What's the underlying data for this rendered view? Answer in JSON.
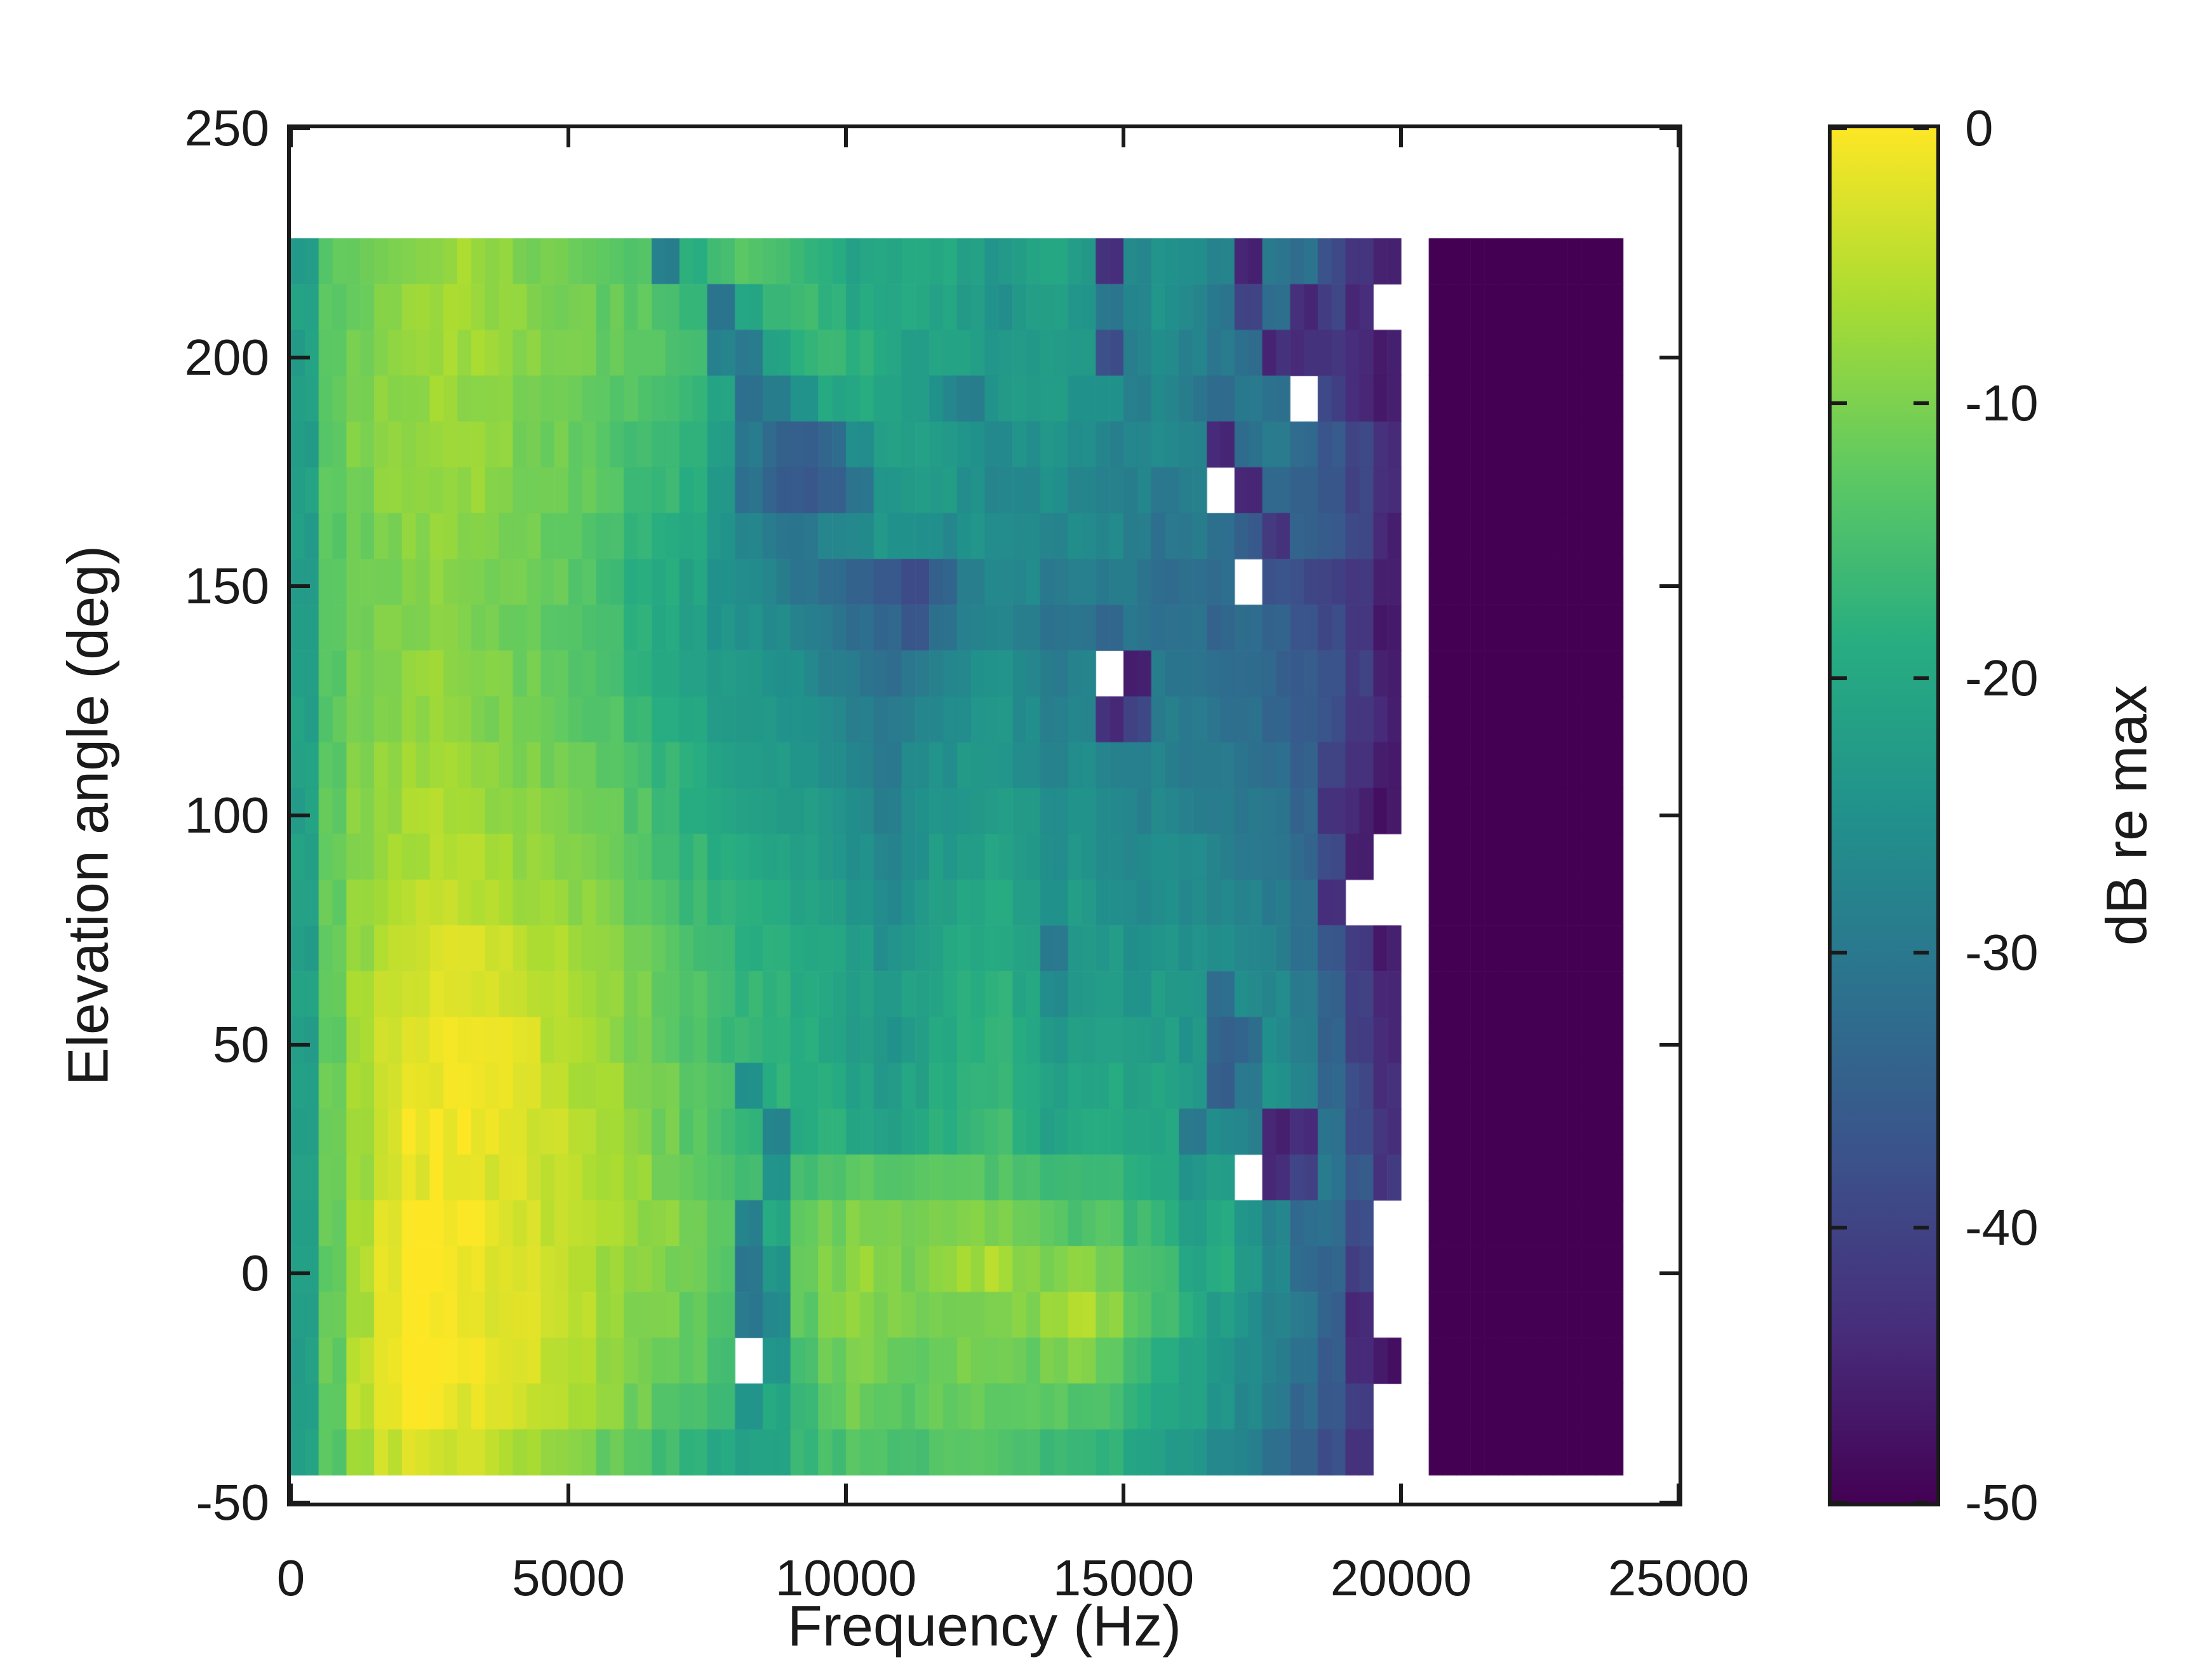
{
  "axes": {
    "xlabel": "Frequency (Hz)",
    "ylabel": "Elevation angle (deg)",
    "xlim": [
      0,
      25000
    ],
    "ylim": [
      -50,
      250
    ],
    "xticks": [
      0,
      5000,
      10000,
      15000,
      20000,
      25000
    ],
    "yticks": [
      -50,
      0,
      50,
      100,
      150,
      200,
      250
    ],
    "spine_color": "#1a1a1a",
    "text_color": "#1a1a1a",
    "background": "#ffffff"
  },
  "colorbar": {
    "label": "dB re max",
    "ticks": [
      0,
      -10,
      -20,
      -30,
      -40,
      -50
    ],
    "min": -50,
    "max": 0
  },
  "chart_data": {
    "type": "heatmap",
    "title": "",
    "xlabel": "Frequency (Hz)",
    "ylabel": "Elevation angle (deg)",
    "value_label": "dB re max",
    "value_range": [
      -50,
      0
    ],
    "xlim": [
      0,
      25000
    ],
    "ylim": [
      -50,
      250
    ],
    "x_bin_edges_hz": {
      "start": 0,
      "step": 500,
      "cols": 48
    },
    "y_bin_top_edges_deg": {
      "top": 226,
      "step": -10,
      "rows": 27
    },
    "nan_rendered_as": "white",
    "colormap": {
      "name": "viridis",
      "stops": [
        "#440154",
        "#472d7b",
        "#3b528b",
        "#2c728e",
        "#21918c",
        "#27ad81",
        "#5ec962",
        "#aadc32",
        "#fde725"
      ]
    },
    "values_db_re_max": [
      [
        -22,
        -13,
        -11,
        -10,
        -9,
        -8,
        -7,
        -8,
        -10,
        -11,
        -12,
        -13,
        -14,
        -28,
        -18,
        -16,
        -14,
        -15,
        -17,
        -19,
        -21,
        -20,
        -19,
        -20,
        -22,
        -24,
        -22,
        -21,
        -23,
        -44,
        -26,
        -24,
        -26,
        -28,
        -45,
        -30,
        -32,
        -38,
        -42,
        -46,
        null,
        -50,
        -50,
        -50,
        -50,
        -50,
        -50,
        -50
      ],
      [
        -22,
        -13,
        -11,
        -9,
        -8,
        -7,
        -7,
        -8,
        -9,
        -10,
        -11,
        -12,
        -13,
        -15,
        -17,
        -30,
        -20,
        -17,
        -16,
        -18,
        -20,
        -21,
        -20,
        -21,
        -23,
        -25,
        -23,
        -22,
        -24,
        -30,
        -27,
        -25,
        -27,
        -30,
        -40,
        -32,
        -44,
        -40,
        -44,
        null,
        null,
        -50,
        -50,
        -50,
        -50,
        -50,
        -50,
        -50
      ],
      [
        -22,
        -13,
        -10,
        -9,
        -8,
        -7,
        -7,
        -8,
        -9,
        -10,
        -11,
        -12,
        -13,
        -14,
        -16,
        -28,
        -30,
        -22,
        -18,
        -17,
        -18,
        -20,
        -22,
        -21,
        -22,
        -24,
        -23,
        -22,
        -24,
        -38,
        -28,
        -26,
        -28,
        -30,
        -32,
        -44,
        -44,
        -42,
        -44,
        -46,
        null,
        -50,
        -50,
        -50,
        -50,
        -50,
        -50,
        -50
      ],
      [
        -22,
        -13,
        -10,
        -9,
        -8,
        -7,
        -8,
        -9,
        -10,
        -11,
        -12,
        -13,
        -14,
        -15,
        -17,
        -20,
        -32,
        -30,
        -24,
        -20,
        -19,
        -20,
        -22,
        -26,
        -28,
        -24,
        -22,
        -23,
        -25,
        -26,
        -28,
        -27,
        -30,
        -32,
        -30,
        -32,
        null,
        -40,
        -44,
        -46,
        null,
        -50,
        -50,
        -50,
        -50,
        -50,
        -50,
        -50
      ],
      [
        -22,
        -13,
        -10,
        -9,
        -8,
        -7,
        -8,
        -9,
        -10,
        -11,
        -12,
        -14,
        -15,
        -16,
        -18,
        -22,
        -30,
        -34,
        -35,
        -33,
        -26,
        -22,
        -21,
        -22,
        -24,
        -26,
        -25,
        -24,
        -26,
        -28,
        -27,
        -26,
        -28,
        -44,
        -32,
        -30,
        -33,
        -36,
        -40,
        -44,
        null,
        -50,
        -50,
        -50,
        -50,
        -50,
        -50,
        -50
      ],
      [
        -22,
        -13,
        -11,
        -9,
        -8,
        -8,
        -8,
        -9,
        -10,
        -11,
        -12,
        -14,
        -16,
        -17,
        -19,
        -24,
        -32,
        -35,
        -36,
        -34,
        -30,
        -24,
        -22,
        -23,
        -25,
        -27,
        -26,
        -25,
        -27,
        -29,
        -28,
        -30,
        -29,
        null,
        -44,
        -33,
        -34,
        -36,
        -40,
        -44,
        null,
        -50,
        -50,
        -50,
        -50,
        -50,
        -50,
        -50
      ],
      [
        -22,
        -13,
        -11,
        -10,
        -9,
        -8,
        -9,
        -10,
        -11,
        -12,
        -13,
        -15,
        -17,
        -18,
        -20,
        -24,
        -28,
        -30,
        -30,
        -28,
        -26,
        -24,
        -25,
        -26,
        -24,
        -25,
        -27,
        -28,
        -26,
        -27,
        -29,
        -31,
        -30,
        -32,
        -35,
        -42,
        -34,
        -36,
        -40,
        -45,
        null,
        -50,
        -50,
        -50,
        -50,
        -50,
        -50,
        -50
      ],
      [
        -22,
        -13,
        -11,
        -10,
        -9,
        -9,
        -9,
        -10,
        -11,
        -12,
        -14,
        -16,
        -18,
        -19,
        -21,
        -24,
        -26,
        -28,
        -30,
        -32,
        -34,
        -36,
        -38,
        -34,
        -28,
        -26,
        -27,
        -30,
        -28,
        -29,
        -30,
        -32,
        -31,
        -33,
        null,
        -38,
        -39,
        -40,
        -42,
        -46,
        null,
        -50,
        -50,
        -50,
        -50,
        -50,
        -50,
        -50
      ],
      [
        -22,
        -13,
        -11,
        -10,
        -9,
        -9,
        -10,
        -11,
        -12,
        -13,
        -14,
        -16,
        -18,
        -20,
        -22,
        -24,
        -25,
        -26,
        -28,
        -30,
        -32,
        -34,
        -36,
        -32,
        -28,
        -27,
        -28,
        -32,
        -30,
        -34,
        -30,
        -31,
        -32,
        -34,
        -33,
        -35,
        -37,
        -39,
        -43,
        -46,
        null,
        -50,
        -50,
        -50,
        -50,
        -50,
        -50,
        -50
      ],
      [
        -22,
        -13,
        -10,
        -9,
        -8,
        -8,
        -9,
        -10,
        -11,
        -12,
        -13,
        -15,
        -17,
        -19,
        -21,
        -23,
        -24,
        -25,
        -26,
        -28,
        -30,
        -32,
        -30,
        -28,
        -26,
        -25,
        -27,
        -29,
        -28,
        null,
        -46,
        -30,
        -31,
        -32,
        -33,
        -34,
        -35,
        -37,
        -41,
        -45,
        null,
        -50,
        -50,
        -50,
        -50,
        -50,
        -50,
        -50
      ],
      [
        -22,
        -13,
        -10,
        -9,
        -8,
        -8,
        -9,
        -10,
        -11,
        -12,
        -13,
        -14,
        -16,
        -18,
        -20,
        -22,
        -23,
        -24,
        -25,
        -26,
        -28,
        -30,
        -28,
        -26,
        -25,
        -24,
        -26,
        -28,
        -27,
        -44,
        -40,
        -29,
        -30,
        -31,
        -32,
        -33,
        -36,
        -38,
        -42,
        -45,
        null,
        -50,
        -50,
        -50,
        -50,
        -50,
        -50,
        -50
      ],
      [
        -22,
        -13,
        -10,
        -8,
        -7,
        -7,
        -8,
        -9,
        -10,
        -11,
        -12,
        -13,
        -15,
        -17,
        -19,
        -21,
        -22,
        -23,
        -24,
        -25,
        -27,
        -30,
        -27,
        -25,
        -24,
        -23,
        -25,
        -27,
        -26,
        -28,
        -29,
        -28,
        -29,
        -30,
        -31,
        -32,
        -35,
        -40,
        -43,
        -46,
        null,
        -50,
        -50,
        -50,
        -50,
        -50,
        -50,
        -50
      ],
      [
        -22,
        -12,
        -9,
        -8,
        -6,
        -6,
        -7,
        -8,
        -9,
        -10,
        -11,
        -12,
        -14,
        -16,
        -18,
        -20,
        -21,
        -22,
        -23,
        -24,
        -26,
        -28,
        -26,
        -24,
        -23,
        -22,
        -24,
        -26,
        -25,
        -27,
        -28,
        -27,
        -28,
        -29,
        -30,
        -31,
        -34,
        -42,
        -45,
        -47,
        null,
        -50,
        -50,
        -50,
        -50,
        -50,
        -50,
        -50
      ],
      [
        -22,
        -12,
        -9,
        -7,
        -6,
        -5,
        -6,
        -7,
        -8,
        -9,
        -10,
        -11,
        -13,
        -15,
        -17,
        -19,
        -20,
        -21,
        -22,
        -23,
        -25,
        -27,
        -25,
        -23,
        -22,
        -21,
        -23,
        -25,
        -24,
        -26,
        -27,
        -26,
        -27,
        -28,
        -29,
        -30,
        -33,
        -38,
        -45,
        null,
        null,
        -50,
        -50,
        -50,
        -50,
        -50,
        -50,
        -50
      ],
      [
        -22,
        -12,
        -8,
        -6,
        -5,
        -4,
        -5,
        -6,
        -7,
        -8,
        -9,
        -10,
        -12,
        -14,
        -16,
        -18,
        -19,
        -20,
        -21,
        -22,
        -24,
        -26,
        -24,
        -22,
        -21,
        -20,
        -22,
        -24,
        -23,
        -25,
        -26,
        -25,
        -26,
        -27,
        -28,
        -29,
        -32,
        -44,
        null,
        null,
        null,
        -50,
        -50,
        -50,
        -50,
        -50,
        -50,
        -50
      ],
      [
        -22,
        -12,
        -8,
        -5,
        -4,
        -3,
        -3,
        -4,
        -5,
        -6,
        -8,
        -9,
        -11,
        -13,
        -15,
        -17,
        -18,
        -19,
        -20,
        -21,
        -23,
        -25,
        -23,
        -21,
        -20,
        -19,
        -21,
        -30,
        -24,
        -23,
        -25,
        -24,
        -25,
        -26,
        -27,
        -28,
        -31,
        -36,
        -42,
        -46,
        null,
        -50,
        -50,
        -50,
        -50,
        -50,
        -50,
        -50
      ],
      [
        -22,
        -12,
        -7,
        -4,
        -3,
        -2,
        -2,
        -3,
        -4,
        -5,
        -7,
        -8,
        -10,
        -12,
        -14,
        -16,
        -17,
        -18,
        -19,
        -20,
        -22,
        -24,
        -22,
        -20,
        -19,
        -18,
        -20,
        -26,
        -23,
        -22,
        -24,
        -23,
        -24,
        -32,
        -26,
        -27,
        -30,
        -35,
        -41,
        -45,
        null,
        -50,
        -50,
        -50,
        -50,
        -50,
        -50,
        -50
      ],
      [
        -22,
        -12,
        -7,
        -3,
        -2,
        -1,
        -2,
        -2,
        -3,
        -5,
        -6,
        -8,
        -10,
        -12,
        -14,
        -16,
        -17,
        -18,
        -19,
        -20,
        -22,
        -24,
        -22,
        -20,
        -19,
        -18,
        -20,
        -24,
        -22,
        -21,
        -23,
        -22,
        -24,
        -34,
        -33,
        -26,
        -29,
        -34,
        -40,
        -45,
        null,
        -50,
        -50,
        -50,
        -50,
        -50,
        -50,
        -50
      ],
      [
        -22,
        -12,
        -7,
        -3,
        -1,
        -1,
        -1,
        -2,
        -3,
        -4,
        -6,
        -7,
        -9,
        -11,
        -13,
        -15,
        -26,
        -18,
        -18,
        -19,
        -21,
        -23,
        -21,
        -19,
        -18,
        -17,
        -19,
        -22,
        -21,
        -20,
        -22,
        -21,
        -23,
        -35,
        -30,
        -25,
        -28,
        -33,
        -39,
        -44,
        null,
        -50,
        -50,
        -50,
        -50,
        -50,
        -50,
        -50
      ],
      [
        -22,
        -12,
        -7,
        -3,
        -1,
        -1,
        -1,
        -2,
        -3,
        -4,
        -5,
        -7,
        -9,
        -11,
        -13,
        -15,
        -17,
        -28,
        -19,
        -18,
        -20,
        -22,
        -20,
        -18,
        -17,
        -16,
        -18,
        -21,
        -20,
        -19,
        -21,
        -20,
        -30,
        -26,
        -28,
        -45,
        -44,
        -32,
        -38,
        -43,
        null,
        -50,
        -50,
        -50,
        -50,
        -50,
        -50,
        -50
      ],
      [
        -22,
        -12,
        -7,
        -3,
        -2,
        -1,
        -2,
        -3,
        -3,
        -4,
        -5,
        -6,
        -8,
        -10,
        -12,
        -14,
        -16,
        -24,
        -16,
        -14,
        -13,
        -14,
        -13,
        -12,
        -13,
        -14,
        -15,
        -16,
        -17,
        -16,
        -19,
        -20,
        -24,
        -22,
        null,
        -44,
        -40,
        -30,
        -36,
        -42,
        null,
        -50,
        -50,
        -50,
        -50,
        -50,
        -50,
        -50
      ],
      [
        -22,
        -12,
        -6,
        -2,
        0,
        0,
        -1,
        -2,
        -3,
        -4,
        -5,
        -6,
        -8,
        -9,
        -11,
        -13,
        -28,
        -20,
        -13,
        -11,
        -9,
        -10,
        -11,
        -10,
        -9,
        -10,
        -12,
        -13,
        -14,
        -13,
        -16,
        -18,
        -22,
        -20,
        -24,
        -28,
        -33,
        -32,
        -38,
        null,
        null,
        -50,
        -50,
        -50,
        -50,
        -50,
        -50,
        -50
      ],
      [
        -22,
        -12,
        -6,
        -2,
        0,
        0,
        -1,
        -2,
        -3,
        -4,
        -5,
        -7,
        -8,
        -10,
        -11,
        -13,
        -30,
        -24,
        -12,
        -10,
        -8,
        -9,
        -10,
        -8,
        -7,
        -6,
        -9,
        -10,
        -8,
        -10,
        -14,
        -16,
        -20,
        -19,
        -23,
        -27,
        -32,
        -34,
        -40,
        null,
        null,
        -50,
        -50,
        -50,
        -50,
        -50,
        -50,
        -50
      ],
      [
        -22,
        -12,
        -6,
        -1,
        0,
        -1,
        -1,
        -2,
        -3,
        -4,
        -5,
        -7,
        -9,
        -10,
        -12,
        -14,
        -30,
        -26,
        -13,
        -10,
        -9,
        -10,
        -11,
        -10,
        -11,
        -10,
        -10,
        -7,
        -6,
        -9,
        -13,
        -16,
        -19,
        -22,
        -25,
        -28,
        -30,
        -35,
        -45,
        null,
        null,
        -50,
        -50,
        -50,
        -50,
        -50,
        -50,
        -50
      ],
      [
        -22,
        -12,
        -5,
        -1,
        0,
        0,
        -1,
        -2,
        -3,
        -5,
        -6,
        -8,
        -10,
        -12,
        -13,
        -15,
        null,
        -24,
        -15,
        -11,
        -10,
        -11,
        -12,
        -11,
        -10,
        -11,
        -12,
        -10,
        -9,
        -12,
        -16,
        -18,
        -21,
        -23,
        -26,
        -29,
        -32,
        -36,
        -44,
        -47,
        null,
        -50,
        -50,
        -50,
        -50,
        -50,
        -50,
        -50
      ],
      [
        -22,
        -12,
        -5,
        -1,
        0,
        -1,
        -2,
        -3,
        -4,
        -5,
        -7,
        -9,
        -11,
        -13,
        -15,
        -17,
        -24,
        -20,
        -16,
        -13,
        -11,
        -12,
        -13,
        -12,
        -11,
        -12,
        -13,
        -13,
        -14,
        -15,
        -18,
        -20,
        -22,
        -24,
        -27,
        -30,
        -33,
        -37,
        -40,
        null,
        null,
        -50,
        -50,
        -50,
        -50,
        -50,
        -50,
        -50
      ],
      [
        -22,
        -13,
        -7,
        -4,
        -3,
        -3,
        -4,
        -5,
        -6,
        -8,
        -10,
        -12,
        -14,
        -16,
        -18,
        -20,
        -21,
        -20,
        -17,
        -15,
        -13,
        -14,
        -15,
        -14,
        -13,
        -14,
        -15,
        -16,
        -17,
        -18,
        -20,
        -22,
        -24,
        -26,
        -28,
        -31,
        -34,
        -38,
        -44,
        null,
        null,
        -50,
        -50,
        -50,
        -50,
        -50,
        -50,
        -50
      ]
    ]
  }
}
